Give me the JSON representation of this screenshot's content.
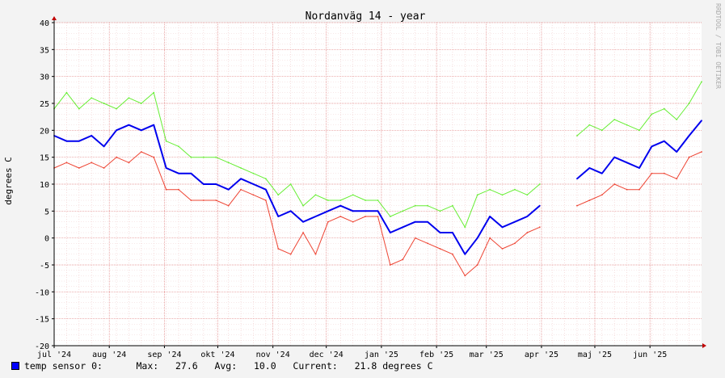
{
  "chart_data": {
    "type": "line",
    "title": "Nordanväg 14 - year",
    "ylabel": "degrees C",
    "watermark": "RRDTOOL / TOBI OETIKER",
    "ylim": [
      -20,
      40
    ],
    "yticks": [
      -20,
      -15,
      -10,
      -5,
      0,
      5,
      10,
      15,
      20,
      25,
      30,
      35,
      40
    ],
    "xlim": [
      "2024-07-01",
      "2025-06-30"
    ],
    "xticks": [
      {
        "date": "2024-07-01",
        "label": "jul '24"
      },
      {
        "date": "2024-08-01",
        "label": "aug '24"
      },
      {
        "date": "2024-09-01",
        "label": "sep '24"
      },
      {
        "date": "2024-10-01",
        "label": "okt '24"
      },
      {
        "date": "2024-11-01",
        "label": "nov '24"
      },
      {
        "date": "2024-12-01",
        "label": "dec '24"
      },
      {
        "date": "2025-01-01",
        "label": "jan '25"
      },
      {
        "date": "2025-02-01",
        "label": "feb '25"
      },
      {
        "date": "2025-03-01",
        "label": "mar '25"
      },
      {
        "date": "2025-04-01",
        "label": "apr '25"
      },
      {
        "date": "2025-05-01",
        "label": "maj '25"
      },
      {
        "date": "2025-06-01",
        "label": "jun '25"
      }
    ],
    "grid": true,
    "x": [
      "2024-07-01",
      "2024-07-08",
      "2024-07-15",
      "2024-07-22",
      "2024-07-29",
      "2024-08-05",
      "2024-08-12",
      "2024-08-19",
      "2024-08-26",
      "2024-09-02",
      "2024-09-09",
      "2024-09-16",
      "2024-09-23",
      "2024-09-30",
      "2024-10-07",
      "2024-10-14",
      "2024-10-21",
      "2024-10-28",
      "2024-11-04",
      "2024-11-11",
      "2024-11-18",
      "2024-11-25",
      "2024-12-02",
      "2024-12-09",
      "2024-12-16",
      "2024-12-23",
      "2024-12-30",
      "2025-01-06",
      "2025-01-13",
      "2025-01-20",
      "2025-01-27",
      "2025-02-03",
      "2025-02-10",
      "2025-02-17",
      "2025-02-24",
      "2025-03-03",
      "2025-03-10",
      "2025-03-17",
      "2025-03-24",
      "2025-03-31",
      "2025-04-07",
      "2025-04-14",
      "2025-04-21",
      "2025-04-28",
      "2025-05-05",
      "2025-05-12",
      "2025-05-19",
      "2025-05-26",
      "2025-06-02",
      "2025-06-09",
      "2025-06-16",
      "2025-06-23",
      "2025-06-30"
    ],
    "series": [
      {
        "name": "max",
        "color": "#66ee33",
        "values": [
          24,
          27,
          24,
          26,
          25,
          24,
          26,
          25,
          27,
          18,
          17,
          15,
          15,
          15,
          14,
          13,
          12,
          11,
          8,
          10,
          6,
          8,
          7,
          7,
          8,
          7,
          7,
          4,
          5,
          6,
          6,
          5,
          6,
          2,
          8,
          9,
          8,
          9,
          8,
          10,
          null,
          null,
          19,
          21,
          20,
          22,
          21,
          20,
          23,
          24,
          22,
          25,
          29
        ]
      },
      {
        "name": "min",
        "color": "#ee4433",
        "values": [
          13,
          14,
          13,
          14,
          13,
          15,
          14,
          16,
          15,
          9,
          9,
          7,
          7,
          7,
          6,
          9,
          8,
          7,
          -2,
          -3,
          1,
          -3,
          3,
          4,
          3,
          4,
          4,
          -5,
          -4,
          0,
          -1,
          -2,
          -3,
          -7,
          -5,
          0,
          -2,
          -1,
          1,
          2,
          null,
          null,
          6,
          7,
          8,
          10,
          9,
          9,
          12,
          12,
          11,
          15,
          16
        ]
      },
      {
        "name": "temp sensor 0",
        "color": "#0000ee",
        "values": [
          19,
          18,
          18,
          19,
          17,
          20,
          21,
          20,
          21,
          13,
          12,
          12,
          10,
          10,
          9,
          11,
          10,
          9,
          4,
          5,
          3,
          4,
          5,
          6,
          5,
          5,
          5,
          1,
          2,
          3,
          3,
          1,
          1,
          -3,
          0,
          4,
          2,
          3,
          4,
          6,
          null,
          null,
          11,
          13,
          12,
          15,
          14,
          13,
          17,
          18,
          16,
          19,
          21.8
        ]
      }
    ],
    "legend": {
      "label": "temp sensor 0:",
      "max_label": "Max:",
      "max": "27.6",
      "avg_label": "Avg:",
      "avg": "10.0",
      "current_label": "Current:",
      "current": "21.8 degrees C",
      "color": "#0000ff"
    }
  }
}
